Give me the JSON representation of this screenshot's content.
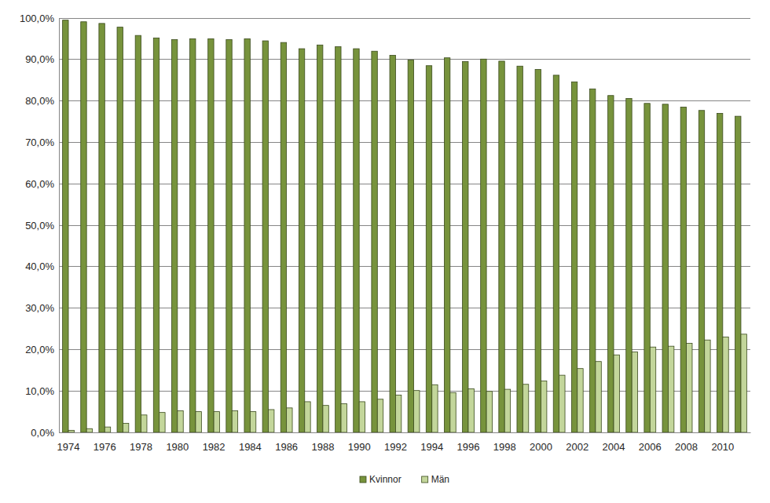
{
  "chart_data": {
    "type": "bar",
    "categories": [
      "1974",
      null,
      "1976",
      null,
      "1978",
      null,
      "1980",
      null,
      "1982",
      null,
      "1984",
      null,
      "1986",
      null,
      "1988",
      null,
      "1990",
      null,
      "1992",
      null,
      "1994",
      null,
      "1996",
      null,
      "1998",
      null,
      "2000",
      null,
      "2002",
      null,
      "2004",
      null,
      "2006",
      null,
      "2008",
      null,
      "2010",
      null
    ],
    "series": [
      {
        "name": "Kvinnor",
        "color": "#77933c",
        "values": [
          99.5,
          99.1,
          98.7,
          97.8,
          95.8,
          95.2,
          94.8,
          95.0,
          95.0,
          94.8,
          95.0,
          94.5,
          94.1,
          92.6,
          93.5,
          93.1,
          92.6,
          92.0,
          91.0,
          89.9,
          88.5,
          90.4,
          89.5,
          90.1,
          89.6,
          88.4,
          87.6,
          86.2,
          84.6,
          82.9,
          81.3,
          80.6,
          79.4,
          79.2,
          78.5,
          77.7,
          77.0,
          76.3
        ]
      },
      {
        "name": "Män",
        "color": "#c3d69b",
        "values": [
          0.5,
          0.9,
          1.3,
          2.2,
          4.2,
          4.8,
          5.2,
          5.0,
          5.0,
          5.2,
          5.0,
          5.5,
          5.9,
          7.4,
          6.5,
          6.9,
          7.4,
          8.0,
          9.0,
          10.1,
          11.5,
          9.6,
          10.5,
          9.9,
          10.4,
          11.6,
          12.4,
          13.8,
          15.4,
          17.1,
          18.7,
          19.4,
          20.6,
          20.8,
          21.5,
          22.3,
          23.0,
          23.7
        ]
      }
    ],
    "ylim": [
      0,
      100
    ],
    "yticks": [
      {
        "value": 0,
        "label": "0,0%"
      },
      {
        "value": 10,
        "label": "10,0%"
      },
      {
        "value": 20,
        "label": "20,0%"
      },
      {
        "value": 30,
        "label": "30,0%"
      },
      {
        "value": 40,
        "label": "40,0%"
      },
      {
        "value": 50,
        "label": "50,0%"
      },
      {
        "value": 60,
        "label": "60,0%"
      },
      {
        "value": 70,
        "label": "70,0%"
      },
      {
        "value": 80,
        "label": "80,0%"
      },
      {
        "value": 90,
        "label": "90,0%"
      },
      {
        "value": 100,
        "label": "100,0%"
      }
    ],
    "grid": true,
    "legend": "bottom"
  }
}
